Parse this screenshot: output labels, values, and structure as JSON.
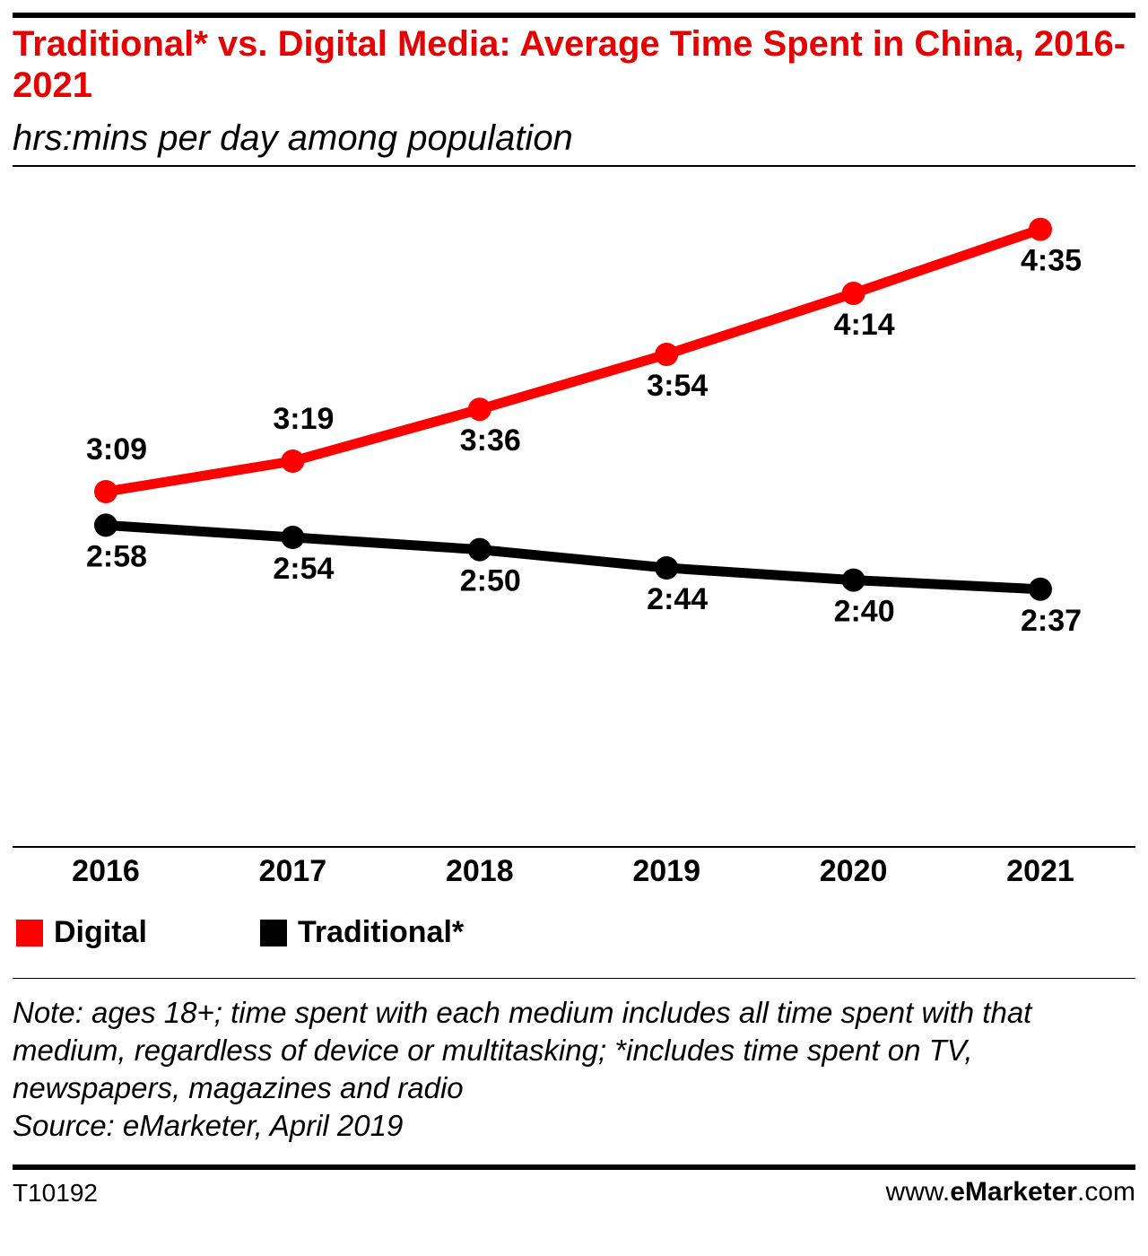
{
  "header": {
    "title": "Traditional* vs. Digital Media: Average Time Spent in China, 2016-2021",
    "subtitle": "hrs:mins per day among population"
  },
  "colors": {
    "title": "#e60000",
    "digital": "#ff0000",
    "traditional": "#000000"
  },
  "chart_data": {
    "type": "line",
    "title": "Traditional* vs. Digital Media: Average Time Spent in China, 2016-2021",
    "subtitle": "hrs:mins per day among population",
    "x": [
      "2016",
      "2017",
      "2018",
      "2019",
      "2020",
      "2021"
    ],
    "xlabel": "",
    "ylabel": "",
    "ylim_minutes": [
      0,
      300
    ],
    "grid": false,
    "legend_position": "bottom-left",
    "series": [
      {
        "name": "Digital",
        "color": "#ff0000",
        "values_minutes": [
          189,
          199,
          216,
          234,
          254,
          275
        ],
        "labels": [
          "3:09",
          "3:19",
          "3:36",
          "3:54",
          "4:14",
          "4:35"
        ]
      },
      {
        "name": "Traditional*",
        "color": "#000000",
        "values_minutes": [
          178,
          174,
          170,
          164,
          160,
          157
        ],
        "labels": [
          "2:58",
          "2:54",
          "2:50",
          "2:44",
          "2:40",
          "2:37"
        ]
      }
    ]
  },
  "legend": {
    "items": [
      "Digital",
      "Traditional*"
    ]
  },
  "note": {
    "text": "Note: ages 18+; time spent with each medium includes all time spent with that medium, regardless of device or multitasking; *includes time spent on TV, newspapers, magazines and radio",
    "source": "Source: eMarketer, April 2019"
  },
  "footer": {
    "chart_id": "T10192",
    "brand_prefix": "www.",
    "brand_name": "eMarketer",
    "brand_suffix": ".com"
  }
}
